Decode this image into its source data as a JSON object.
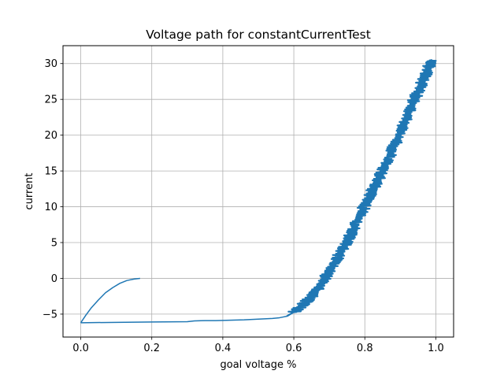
{
  "chart_data": {
    "type": "line",
    "title": "Voltage path for constantCurrentTest",
    "xlabel": "goal voltage %",
    "ylabel": "current",
    "xlim": [
      -0.05,
      1.05
    ],
    "ylim": [
      -8.2,
      32.5
    ],
    "xticks": [
      0.0,
      0.2,
      0.4,
      0.6,
      0.8,
      1.0
    ],
    "xtick_labels": [
      "0.0",
      "0.2",
      "0.4",
      "0.6",
      "0.8",
      "1.0"
    ],
    "yticks": [
      -5,
      0,
      5,
      10,
      15,
      20,
      25,
      30
    ],
    "ytick_labels": [
      "−5",
      "0",
      "5",
      "10",
      "15",
      "20",
      "25",
      "30"
    ],
    "grid": true,
    "line_color": "#1f77b4",
    "series": [
      {
        "x": [
          0.167,
          0.15,
          0.13,
          0.11,
          0.09,
          0.07,
          0.05,
          0.03,
          0.015,
          0.0
        ],
        "y": [
          0.0,
          -0.1,
          -0.3,
          -0.7,
          -1.3,
          -2.0,
          -3.0,
          -4.1,
          -5.1,
          -6.2
        ]
      },
      {
        "x": [
          0.0,
          0.1,
          0.2,
          0.3,
          0.32,
          0.35,
          0.38,
          0.42,
          0.46,
          0.5,
          0.54,
          0.56,
          0.58
        ],
        "y": [
          -6.2,
          -6.15,
          -6.1,
          -6.05,
          -5.95,
          -5.9,
          -5.9,
          -5.85,
          -5.8,
          -5.7,
          -5.6,
          -5.5,
          -5.3
        ]
      },
      {
        "x": [
          0.58,
          0.6,
          0.62,
          0.64,
          0.66,
          0.68,
          0.7,
          0.72,
          0.74,
          0.76,
          0.78,
          0.8,
          0.82,
          0.84,
          0.86,
          0.88,
          0.9,
          0.92,
          0.94,
          0.96,
          0.98,
          0.99
        ],
        "y": [
          -5.3,
          -4.7,
          -3.9,
          -3.0,
          -1.9,
          -0.6,
          1.0,
          2.6,
          4.3,
          6.1,
          8.1,
          10.2,
          12.2,
          14.0,
          16.0,
          18.2,
          20.5,
          22.7,
          25.0,
          27.2,
          29.5,
          30.5
        ],
        "jitter": {
          "from": 0.6,
          "amplitude": 0.018
        }
      }
    ]
  }
}
